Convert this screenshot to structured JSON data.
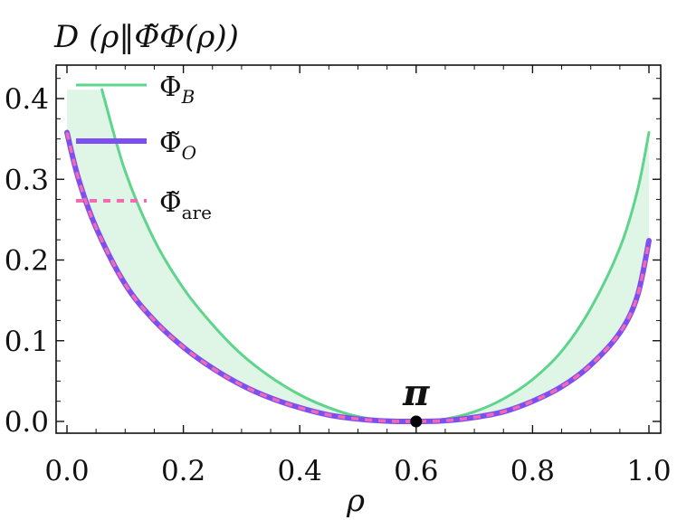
{
  "chart_data": {
    "type": "line",
    "title": "D (ρ‖Φ̃Φ(ρ))",
    "xlabel": "ρ",
    "ylabel": "",
    "xlim": [
      0.0,
      1.0
    ],
    "ylim": [
      -0.01,
      0.435
    ],
    "xticks": [
      "0.0",
      "0.2",
      "0.4",
      "0.6",
      "0.8",
      "1.0"
    ],
    "yticks": [
      "0.0",
      "0.1",
      "0.2",
      "0.3",
      "0.4"
    ],
    "grid": false,
    "legend_position": "top-left",
    "series": [
      {
        "name": "Φ_B",
        "label_main": "Φ",
        "label_sub": "B",
        "color": "#5ed48c",
        "style": "solid",
        "x": [
          0.06,
          0.1,
          0.15,
          0.2,
          0.25,
          0.3,
          0.35,
          0.4,
          0.45,
          0.5,
          0.55,
          0.6,
          0.65,
          0.7,
          0.75,
          0.8,
          0.85,
          0.9,
          0.95,
          0.98,
          1.0
        ],
        "y": [
          0.411,
          0.31,
          0.225,
          0.165,
          0.12,
          0.083,
          0.055,
          0.033,
          0.017,
          0.006,
          0.001,
          0.0,
          0.003,
          0.012,
          0.028,
          0.052,
          0.087,
          0.14,
          0.215,
          0.285,
          0.358
        ]
      },
      {
        "name": "Φ̃_O",
        "label_main": "Φ̃",
        "label_sub": "O",
        "color": "#7e4ff0",
        "style": "solid",
        "x": [
          0.0,
          0.02,
          0.05,
          0.1,
          0.15,
          0.2,
          0.25,
          0.3,
          0.35,
          0.4,
          0.45,
          0.5,
          0.55,
          0.6,
          0.65,
          0.7,
          0.75,
          0.8,
          0.85,
          0.9,
          0.95,
          0.98,
          1.0
        ],
        "y": [
          0.358,
          0.3,
          0.24,
          0.17,
          0.125,
          0.092,
          0.066,
          0.045,
          0.029,
          0.017,
          0.008,
          0.003,
          0.0005,
          0.0,
          0.001,
          0.005,
          0.012,
          0.025,
          0.043,
          0.07,
          0.11,
          0.155,
          0.224
        ]
      },
      {
        "name": "Φ̃_are",
        "label_main": "Φ̃",
        "label_sub": "are",
        "color": "#f26bb2",
        "style": "dashed",
        "x": [
          0.0,
          0.02,
          0.05,
          0.1,
          0.15,
          0.2,
          0.25,
          0.3,
          0.35,
          0.4,
          0.45,
          0.5,
          0.55,
          0.6,
          0.65,
          0.7,
          0.75,
          0.8,
          0.85,
          0.9,
          0.95,
          0.98,
          1.0
        ],
        "y": [
          0.358,
          0.3,
          0.24,
          0.17,
          0.125,
          0.092,
          0.066,
          0.045,
          0.029,
          0.017,
          0.008,
          0.003,
          0.0005,
          0.0,
          0.001,
          0.005,
          0.012,
          0.025,
          0.043,
          0.07,
          0.11,
          0.155,
          0.224
        ]
      }
    ],
    "fill_between": {
      "color": "#dff5e6",
      "x_left": 0.0,
      "x_right": 1.0,
      "cap_y": 0.411
    },
    "annotations": [
      {
        "text": "π",
        "x": 0.6,
        "y": 0.0
      }
    ]
  }
}
